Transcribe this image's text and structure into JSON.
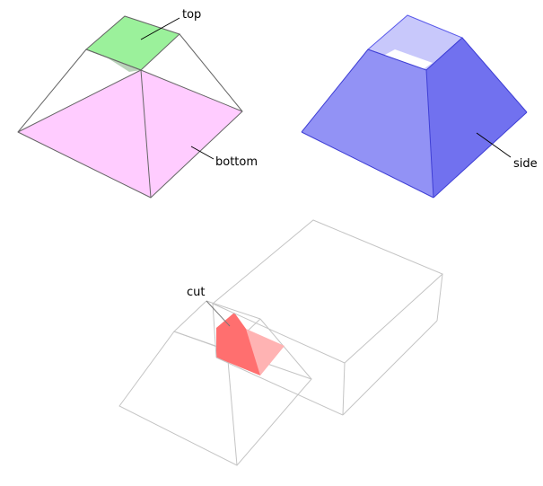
{
  "labels": {
    "top": "top",
    "bottom": "bottom",
    "side": "side",
    "cut": "cut"
  },
  "colors": {
    "top_face": "#90f090",
    "bottom_face": "#ffccff",
    "side_face_light": "#a8a8f8",
    "side_face_dark": "#5555ee",
    "cut_face": "#ff6f6f",
    "outline": "#6a6a6a",
    "ghost_outline": "#c4c4c4"
  }
}
